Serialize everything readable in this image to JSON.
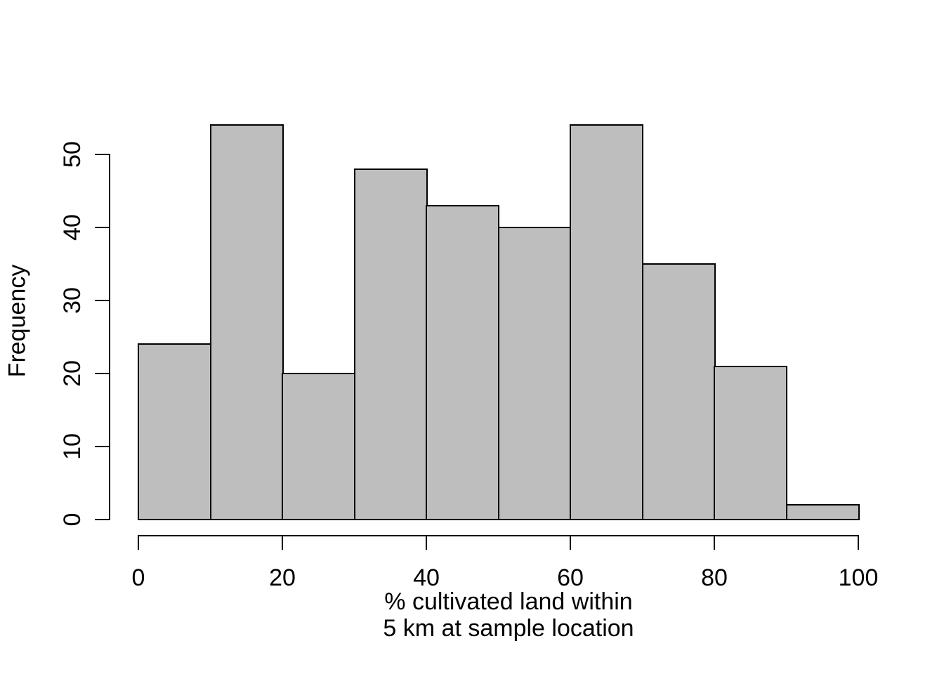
{
  "chart_data": {
    "type": "bar",
    "subtype": "histogram",
    "title": "",
    "xlabel": "% cultivated land within 5 km at sample location",
    "xlabel_lines": [
      "% cultivated land within",
      "5 km at sample location"
    ],
    "ylabel": "Frequency",
    "bins": {
      "breaks": [
        0,
        10,
        20,
        30,
        40,
        50,
        60,
        70,
        80,
        90,
        100
      ],
      "counts": [
        24,
        54,
        20,
        48,
        43,
        40,
        54,
        35,
        21,
        2
      ]
    },
    "categories": [
      "0-10",
      "10-20",
      "20-30",
      "30-40",
      "40-50",
      "50-60",
      "60-70",
      "70-80",
      "80-90",
      "90-100"
    ],
    "values": [
      24,
      54,
      20,
      48,
      43,
      40,
      54,
      35,
      21,
      2
    ],
    "x_ticks": [
      0,
      20,
      40,
      60,
      80,
      100
    ],
    "y_ticks": [
      0,
      10,
      20,
      30,
      40,
      50
    ],
    "xlim": [
      0,
      100
    ],
    "ylim": [
      0,
      54
    ],
    "grid": false,
    "legend": null,
    "colors": {
      "bar_fill": "#bebebe",
      "bar_border": "#000000",
      "axis": "#000000",
      "text": "#000000"
    }
  }
}
